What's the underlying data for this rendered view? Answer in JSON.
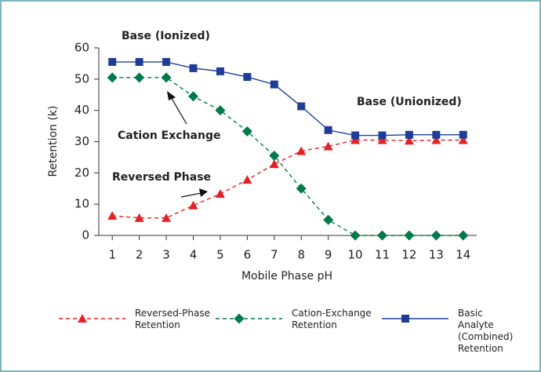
{
  "chart_data": {
    "type": "line",
    "xlabel": "Mobile Phase pH",
    "ylabel": "Retention (k)",
    "x": [
      1,
      2,
      3,
      4,
      5,
      6,
      7,
      8,
      9,
      10,
      11,
      12,
      13,
      14
    ],
    "xlim": [
      0.5,
      14.5
    ],
    "xticks": [
      1,
      2,
      3,
      4,
      5,
      6,
      7,
      8,
      9,
      10,
      11,
      12,
      13,
      14
    ],
    "ylim": [
      0,
      60
    ],
    "yticks": [
      0,
      10,
      20,
      30,
      40,
      50,
      60
    ],
    "grid": false,
    "legend": "bottom",
    "series": [
      {
        "name": "Reversed-Phase Retention",
        "color": "#e32227",
        "marker": "triangle",
        "linestyle": "dashed",
        "values": [
          6.3,
          5.6,
          5.6,
          9.6,
          13.3,
          17.8,
          22.8,
          27,
          28.5,
          30.5,
          30.5,
          30.3,
          30.5,
          30.5
        ]
      },
      {
        "name": "Cation-Exchange Retention",
        "color": "#007a4a",
        "marker": "diamond",
        "linestyle": "dashed",
        "values": [
          50.5,
          50.5,
          50.5,
          44.5,
          40,
          33.3,
          25.5,
          15,
          5,
          0,
          0,
          0,
          0,
          0
        ]
      },
      {
        "name": "Basic Analyte (Combined) Retention",
        "color": "#1f3d96",
        "marker": "square",
        "linestyle": "solid",
        "values": [
          55.5,
          55.5,
          55.5,
          53.5,
          52.5,
          50.7,
          48.3,
          41.3,
          33.7,
          32,
          32,
          32.2,
          32.2,
          32.2
        ]
      }
    ],
    "annotations": [
      "Base (Ionized)",
      "Base (Unionized)",
      "Cation Exchange",
      "Reversed Phase"
    ]
  }
}
